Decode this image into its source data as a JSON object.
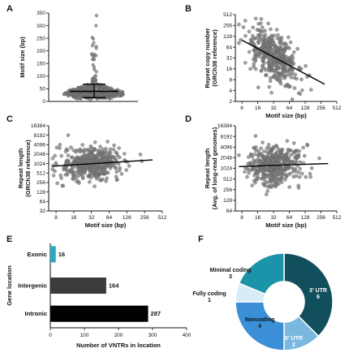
{
  "chart_data": [
    {
      "panel": "A",
      "type": "scatter",
      "ylabel": "Motif size (bp)",
      "ylim": [
        0,
        350
      ],
      "yticks": [
        0,
        50,
        100,
        150,
        200,
        250,
        300,
        350
      ],
      "summary": {
        "mean": 40,
        "sd_low": 15,
        "sd_high": 68,
        "median": 34
      },
      "point_color": "#7a7a7a"
    },
    {
      "panel": "B",
      "type": "scatter",
      "xlabel": "Motif size (bp)",
      "ylabel_lines": [
        "Repeat copy number",
        "(GRCh38 reference)"
      ],
      "xscale": "log2",
      "yscale": "log2",
      "xlim": [
        6,
        512
      ],
      "ylim": [
        2,
        512
      ],
      "xticks": [
        8,
        16,
        32,
        64,
        128,
        256,
        512
      ],
      "yticks": [
        2,
        4,
        8,
        16,
        32,
        64,
        128,
        256,
        512
      ],
      "trend": {
        "x": [
          8,
          300
        ],
        "y": [
          100,
          6
        ]
      },
      "point_color": "#7a7a7a"
    },
    {
      "panel": "C",
      "type": "scatter",
      "xlabel": "Motif size (bp)",
      "ylabel_lines": [
        "Repeat length",
        "(GRCh38 reference)"
      ],
      "xscale": "log2",
      "yscale": "log2",
      "xlim": [
        6,
        512
      ],
      "ylim": [
        32,
        16384
      ],
      "xticks": [
        8,
        16,
        32,
        64,
        128,
        256,
        512
      ],
      "yticks": [
        32,
        64,
        128,
        256,
        512,
        1024,
        2048,
        4096,
        8192,
        16384
      ],
      "trend": {
        "x": [
          7,
          350
        ],
        "y": [
          850,
          1350
        ]
      },
      "point_color": "#7a7a7a"
    },
    {
      "panel": "D",
      "type": "scatter",
      "xlabel": "Motif size (bp)",
      "ylabel_lines": [
        "Repeat length",
        "(Avg. of long-read genomes)"
      ],
      "xscale": "log2",
      "yscale": "log2",
      "xlim": [
        6,
        512
      ],
      "ylim": [
        64,
        16384
      ],
      "xticks": [
        8,
        16,
        32,
        64,
        128,
        256,
        512
      ],
      "yticks": [
        64,
        128,
        256,
        512,
        1024,
        2048,
        4096,
        8192,
        16384
      ],
      "trend": {
        "x": [
          7,
          350
        ],
        "y": [
          1150,
          1400
        ]
      },
      "point_color": "#7a7a7a"
    },
    {
      "panel": "E",
      "type": "bar",
      "orientation": "horizontal",
      "categories": [
        "Exonic",
        "Intergenic",
        "Intronic"
      ],
      "values": [
        16,
        164,
        287
      ],
      "colors": [
        "#2aa9c2",
        "#3b3b3b",
        "#000000"
      ],
      "xlabel": "Number of VNTRs in location",
      "ylabel": "Gene location",
      "xlim": [
        0,
        400
      ],
      "xticks": [
        0,
        100,
        200,
        300,
        400
      ]
    },
    {
      "panel": "F",
      "type": "pie",
      "style": "donut",
      "slices": [
        {
          "label": "3' UTR",
          "value": 6,
          "color": "#124f5c",
          "text_color": "#ffffff"
        },
        {
          "label": "5' UTR",
          "value": 2,
          "color": "#7ab8e0",
          "text_color": "#ffffff"
        },
        {
          "label": "Noncoding",
          "value": 4,
          "color": "#3a8fd6",
          "text_color": "#111111"
        },
        {
          "label": "Fully coding",
          "value": 1,
          "color": "#d6ecf6",
          "text_color": "#111111"
        },
        {
          "label": "Minimal coding",
          "value": 3,
          "color": "#1b93a8",
          "text_color": "#111111"
        }
      ]
    }
  ]
}
